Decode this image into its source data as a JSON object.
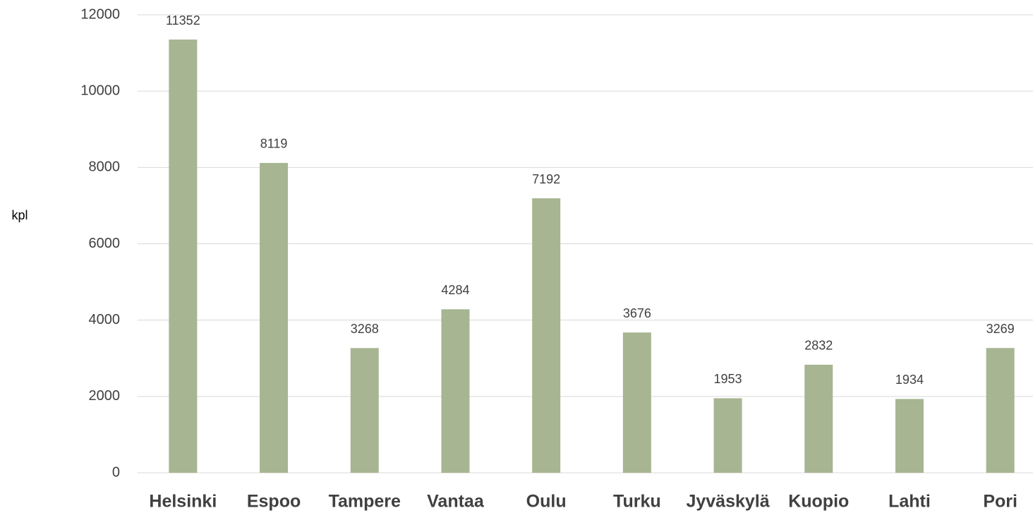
{
  "chart_data": {
    "type": "bar",
    "y_label": "kpl",
    "categories": [
      "Helsinki",
      "Espoo",
      "Tampere",
      "Vantaa",
      "Oulu",
      "Turku",
      "Jyväskylä",
      "Kuopio",
      "Lahti",
      "Pori"
    ],
    "values": [
      11352,
      8119,
      3268,
      4284,
      7192,
      3676,
      1953,
      2832,
      1934,
      3269
    ],
    "color": "#a7b592",
    "ylim": [
      0,
      12000
    ],
    "yticks": [
      0,
      2000,
      4000,
      6000,
      8000,
      10000,
      12000
    ],
    "grid": true
  }
}
